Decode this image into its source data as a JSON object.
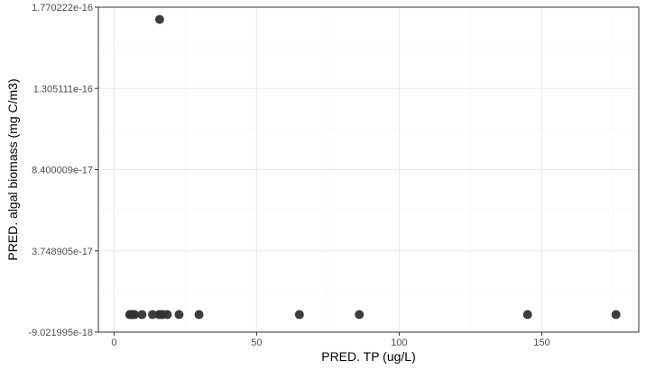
{
  "chart_data": {
    "type": "scatter",
    "title": "",
    "xlabel": "PRED. TP (ug/L)",
    "ylabel": "PRED. algal biomass (mg C/m3)",
    "xlim": [
      -5.5,
      184
    ],
    "ylim": [
      -9.021995e-18,
      1.770222e-16
    ],
    "x_ticks": [
      {
        "value": 0,
        "label": "0"
      },
      {
        "value": 50,
        "label": "50"
      },
      {
        "value": 100,
        "label": "100"
      },
      {
        "value": 150,
        "label": "150"
      }
    ],
    "y_ticks": [
      {
        "value": -9.021995e-18,
        "label": "-9.021995e-18"
      },
      {
        "value": 3.748905e-17,
        "label": "3.748905e-17"
      },
      {
        "value": 8.400009e-17,
        "label": "8.400009e-17"
      },
      {
        "value": 1.305111e-16,
        "label": "1.305111e-16"
      },
      {
        "value": 1.770222e-16,
        "label": "1.770222e-16"
      }
    ],
    "grid": true,
    "point_color": "#333333",
    "points": [
      {
        "x": 5.5,
        "y": 1e-18
      },
      {
        "x": 6.0,
        "y": 1e-18
      },
      {
        "x": 6.5,
        "y": 1e-18
      },
      {
        "x": 7.2,
        "y": 1e-18
      },
      {
        "x": 9.8,
        "y": 1e-18
      },
      {
        "x": 13.5,
        "y": 1e-18
      },
      {
        "x": 15.8,
        "y": 1e-18
      },
      {
        "x": 16.3,
        "y": 1e-18
      },
      {
        "x": 16.0,
        "y": 1.7e-16
      },
      {
        "x": 17.2,
        "y": 1e-18
      },
      {
        "x": 18.7,
        "y": 1e-18
      },
      {
        "x": 22.8,
        "y": 1e-18
      },
      {
        "x": 29.8,
        "y": 1e-18
      },
      {
        "x": 65.0,
        "y": 1e-18
      },
      {
        "x": 86.0,
        "y": 1e-18
      },
      {
        "x": 145.0,
        "y": 1e-18
      },
      {
        "x": 176.0,
        "y": 1e-18
      }
    ]
  }
}
